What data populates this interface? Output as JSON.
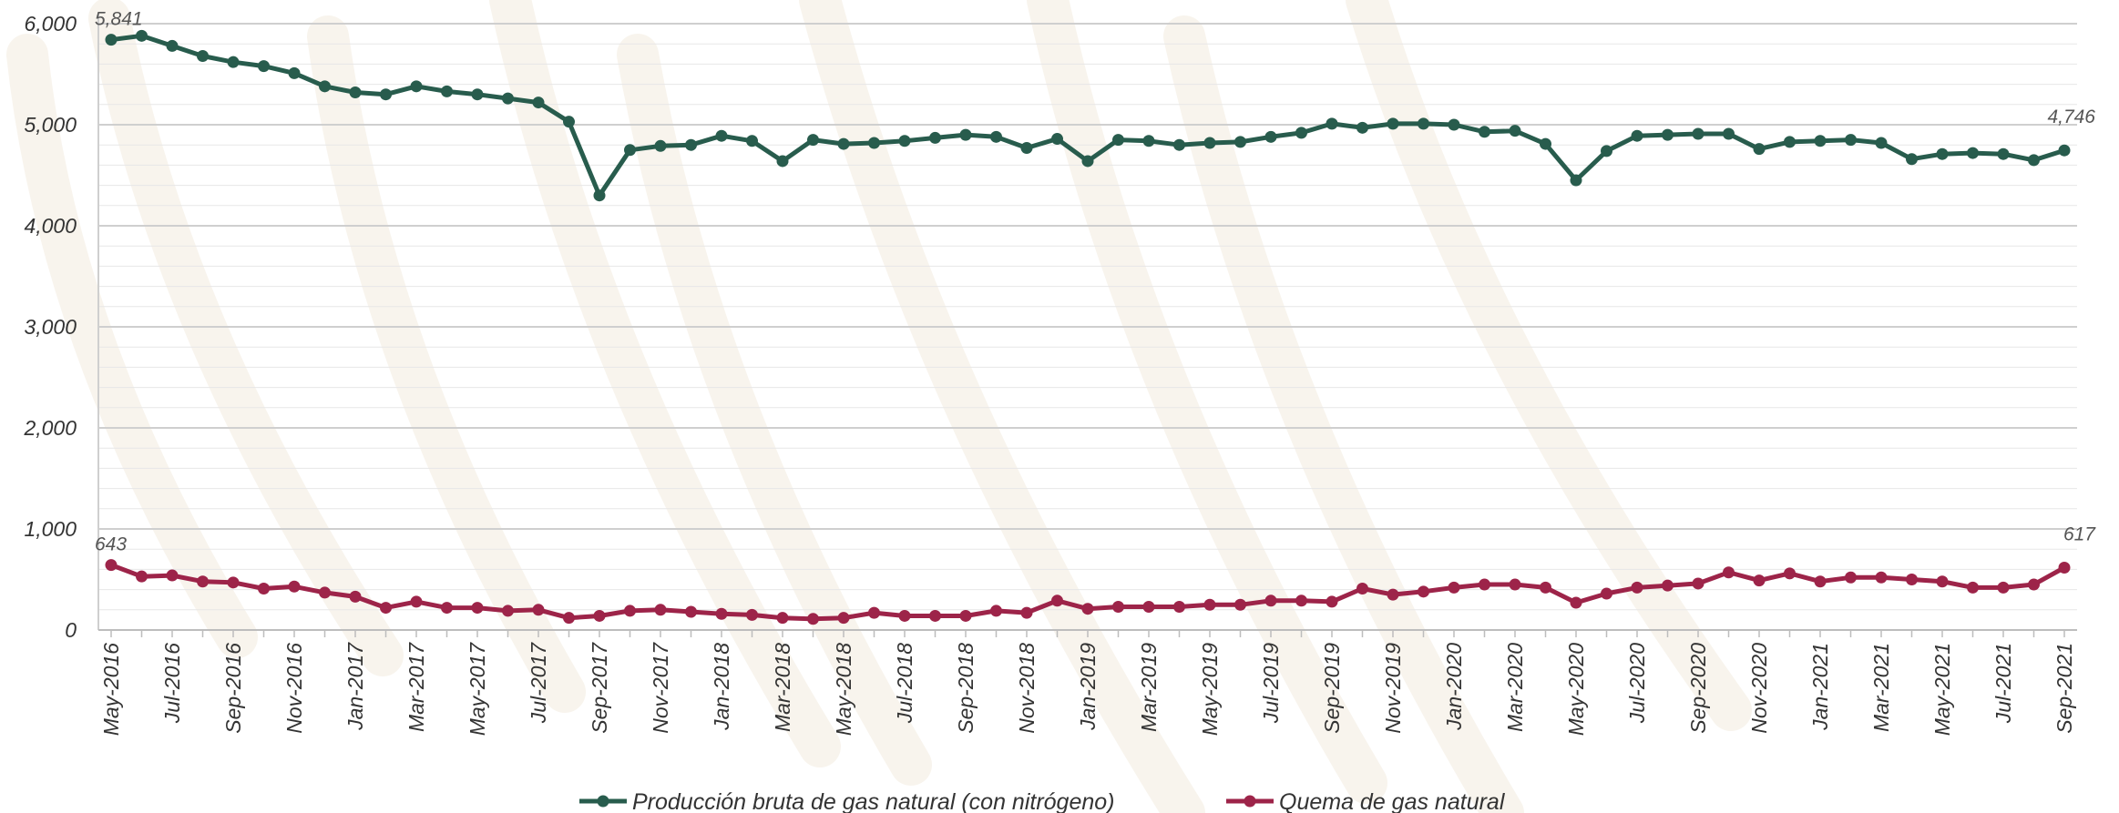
{
  "chart_data": {
    "type": "line",
    "title": "",
    "xlabel": "",
    "ylabel": "",
    "ylim": [
      0,
      6000
    ],
    "y_ticks": [
      "0",
      "1,000",
      "2,000",
      "3,000",
      "4,000",
      "5,000",
      "6,000"
    ],
    "y_tick_values": [
      0,
      1000,
      2000,
      3000,
      4000,
      5000,
      6000
    ],
    "minor_grid_step": 200,
    "grid": true,
    "legend_position": "bottom",
    "x": [
      "May-2016",
      "Jun-2016",
      "Jul-2016",
      "Aug-2016",
      "Sep-2016",
      "Oct-2016",
      "Nov-2016",
      "Dec-2016",
      "Jan-2017",
      "Feb-2017",
      "Mar-2017",
      "Apr-2017",
      "May-2017",
      "Jun-2017",
      "Jul-2017",
      "Aug-2017",
      "Sep-2017",
      "Oct-2017",
      "Nov-2017",
      "Dec-2017",
      "Jan-2018",
      "Feb-2018",
      "Mar-2018",
      "Apr-2018",
      "May-2018",
      "Jun-2018",
      "Jul-2018",
      "Aug-2018",
      "Sep-2018",
      "Oct-2018",
      "Nov-2018",
      "Dec-2018",
      "Jan-2019",
      "Feb-2019",
      "Mar-2019",
      "Apr-2019",
      "May-2019",
      "Jun-2019",
      "Jul-2019",
      "Aug-2019",
      "Sep-2019",
      "Oct-2019",
      "Nov-2019",
      "Dec-2019",
      "Jan-2020",
      "Feb-2020",
      "Mar-2020",
      "Apr-2020",
      "May-2020",
      "Jun-2020",
      "Jul-2020",
      "Aug-2020",
      "Sep-2020",
      "Oct-2020",
      "Nov-2020",
      "Dec-2020",
      "Jan-2021",
      "Feb-2021",
      "Mar-2021",
      "Apr-2021",
      "May-2021",
      "Jun-2021",
      "Jul-2021",
      "Aug-2021",
      "Sep-2021"
    ],
    "x_tick_labels_shown": [
      "May-2016",
      "Jul-2016",
      "Sep-2016",
      "Nov-2016",
      "Jan-2017",
      "Mar-2017",
      "May-2017",
      "Jul-2017",
      "Sep-2017",
      "Nov-2017",
      "Jan-2018",
      "Mar-2018",
      "May-2018",
      "Jul-2018",
      "Sep-2018",
      "Nov-2018",
      "Jan-2019",
      "Mar-2019",
      "May-2019",
      "Jul-2019",
      "Sep-2019",
      "Nov-2019",
      "Jan-2020",
      "Mar-2020",
      "May-2020",
      "Jul-2020",
      "Sep-2020",
      "Nov-2020",
      "Jan-2021",
      "Mar-2021",
      "May-2021",
      "Jul-2021",
      "Sep-2021"
    ],
    "series": [
      {
        "name": "Producción bruta de gas natural (con nitrógeno)",
        "color": "#285c4d",
        "values": [
          5841,
          5880,
          5780,
          5680,
          5620,
          5580,
          5510,
          5380,
          5320,
          5300,
          5380,
          5330,
          5300,
          5260,
          5220,
          5030,
          4300,
          4750,
          4790,
          4800,
          4890,
          4840,
          4640,
          4850,
          4810,
          4820,
          4840,
          4870,
          4900,
          4880,
          4770,
          4860,
          4640,
          4850,
          4840,
          4800,
          4820,
          4830,
          4880,
          4920,
          5010,
          4970,
          5010,
          5010,
          5000,
          4930,
          4940,
          4810,
          4450,
          4740,
          4890,
          4900,
          4910,
          4910,
          4760,
          4830,
          4840,
          4850,
          4820,
          4660,
          4710,
          4720,
          4710,
          4650,
          4746
        ],
        "end_labels": {
          "first": "5,841",
          "last": "4,746"
        }
      },
      {
        "name": "Quema de gas natural",
        "color": "#9d2449",
        "values": [
          643,
          530,
          540,
          480,
          470,
          410,
          430,
          370,
          330,
          220,
          280,
          220,
          220,
          190,
          200,
          120,
          140,
          190,
          200,
          180,
          160,
          150,
          120,
          110,
          120,
          170,
          140,
          140,
          140,
          190,
          170,
          290,
          210,
          230,
          230,
          230,
          250,
          250,
          290,
          290,
          280,
          410,
          350,
          380,
          420,
          450,
          450,
          420,
          270,
          360,
          420,
          440,
          460,
          570,
          490,
          560,
          480,
          520,
          520,
          500,
          480,
          420,
          420,
          450,
          617
        ],
        "end_labels": {
          "first": "643",
          "last": "617"
        }
      }
    ]
  }
}
